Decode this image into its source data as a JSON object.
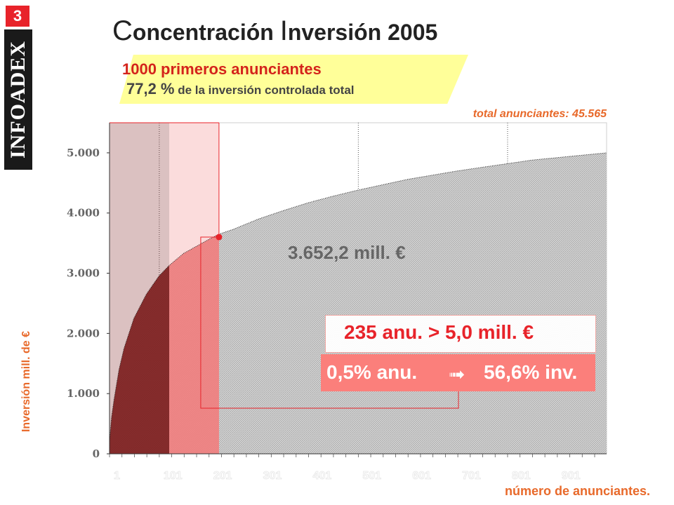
{
  "badge": "3",
  "logo_text": "INFOADEX",
  "title": {
    "first_cap": "C",
    "first_rest": "oncentración ",
    "second_cap": "I",
    "second_rest": "nversión 2005"
  },
  "highlight": {
    "line1": "1000 primeros anunciantes",
    "value": "77,2 %",
    "line2_rest": " de la inversión controlada total"
  },
  "total_advertisers": "total anunciantes: 45.565",
  "value_label": "3.652,2 mill. €",
  "top_advertisers_box": "235 anu.  >  5,0 mill. €",
  "share_box": {
    "left": "0,5% anu.",
    "arrow": "➟",
    "right": "56,6% inv."
  },
  "colors": {
    "accent_red": "#e8232a",
    "accent_orange": "#e8692a",
    "highlight_yellow": "#ffff99",
    "share_box": "#fb7f7b"
  },
  "chart_data": {
    "type": "area",
    "xlabel": "número de anunciantes.",
    "ylabel": "Inversión mill. de €",
    "ylim": [
      0,
      5500
    ],
    "xlim": [
      1,
      1000
    ],
    "y_ticks": [
      "0",
      "1.000",
      "2.000",
      "3.000",
      "4.000",
      "5.000"
    ],
    "y_tick_values": [
      0,
      1000,
      2000,
      3000,
      4000,
      5000
    ],
    "x_ticks": [
      "1",
      "101",
      "201",
      "301",
      "401",
      "501",
      "601",
      "701",
      "801",
      "901"
    ],
    "x_tick_values": [
      1,
      101,
      201,
      301,
      401,
      501,
      601,
      701,
      801,
      901
    ],
    "vertical_gridlines_at": [
      101,
      501,
      801
    ],
    "shaded_regions": [
      {
        "from": 1,
        "to": 121,
        "color": "#7f1f1f"
      },
      {
        "from": 121,
        "to": 221,
        "color": "#f08080"
      }
    ],
    "marked_point": {
      "x": 221,
      "y": 3600
    },
    "series": [
      {
        "x": [
          1,
          5,
          10,
          20,
          30,
          50,
          75,
          100,
          121,
          150,
          200,
          221,
          250,
          300,
          350,
          400,
          450,
          500,
          550,
          600,
          650,
          700,
          750,
          800,
          850,
          900,
          950,
          1000
        ],
        "y": [
          200,
          600,
          900,
          1400,
          1750,
          2250,
          2650,
          2950,
          3130,
          3330,
          3560,
          3650,
          3730,
          3900,
          4040,
          4170,
          4280,
          4380,
          4470,
          4560,
          4630,
          4700,
          4760,
          4820,
          4880,
          4920,
          4960,
          5000
        ]
      }
    ]
  }
}
